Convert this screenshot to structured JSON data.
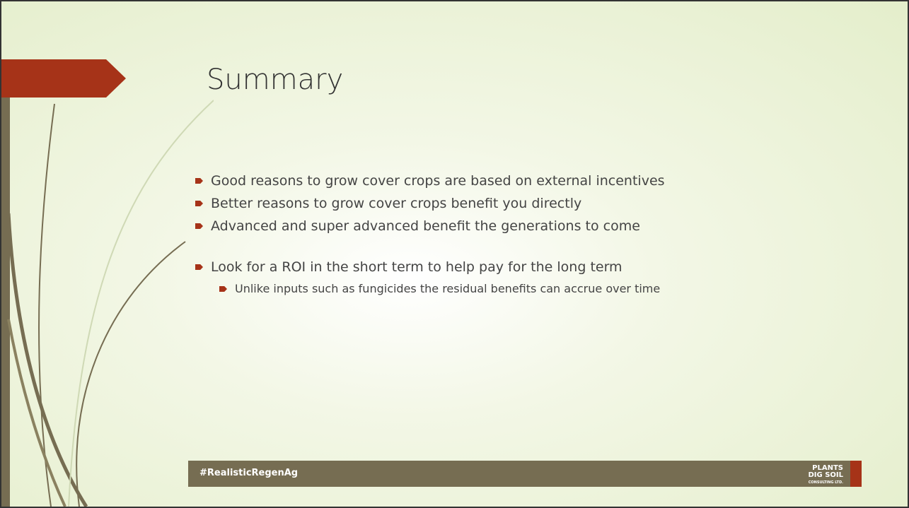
{
  "slide": {
    "title": "Summary",
    "bullets": [
      {
        "text": "Good reasons to grow cover crops are based on external incentives",
        "level": 1
      },
      {
        "text": "Better reasons to grow cover crops benefit you directly",
        "level": 1
      },
      {
        "text": "Advanced and super advanced benefit the generations to come",
        "level": 1
      },
      {
        "text": "Look for a ROI in the short term to help pay for the long term",
        "level": 1
      },
      {
        "text": "Unlike inputs such as fungicides the residual benefits can accrue over time",
        "level": 2
      }
    ],
    "footer": "#RealisticRegenAg",
    "logo": {
      "line1": "PLANTS",
      "line2": "DIG SOIL",
      "line3": "CONSULTING LTD."
    }
  }
}
